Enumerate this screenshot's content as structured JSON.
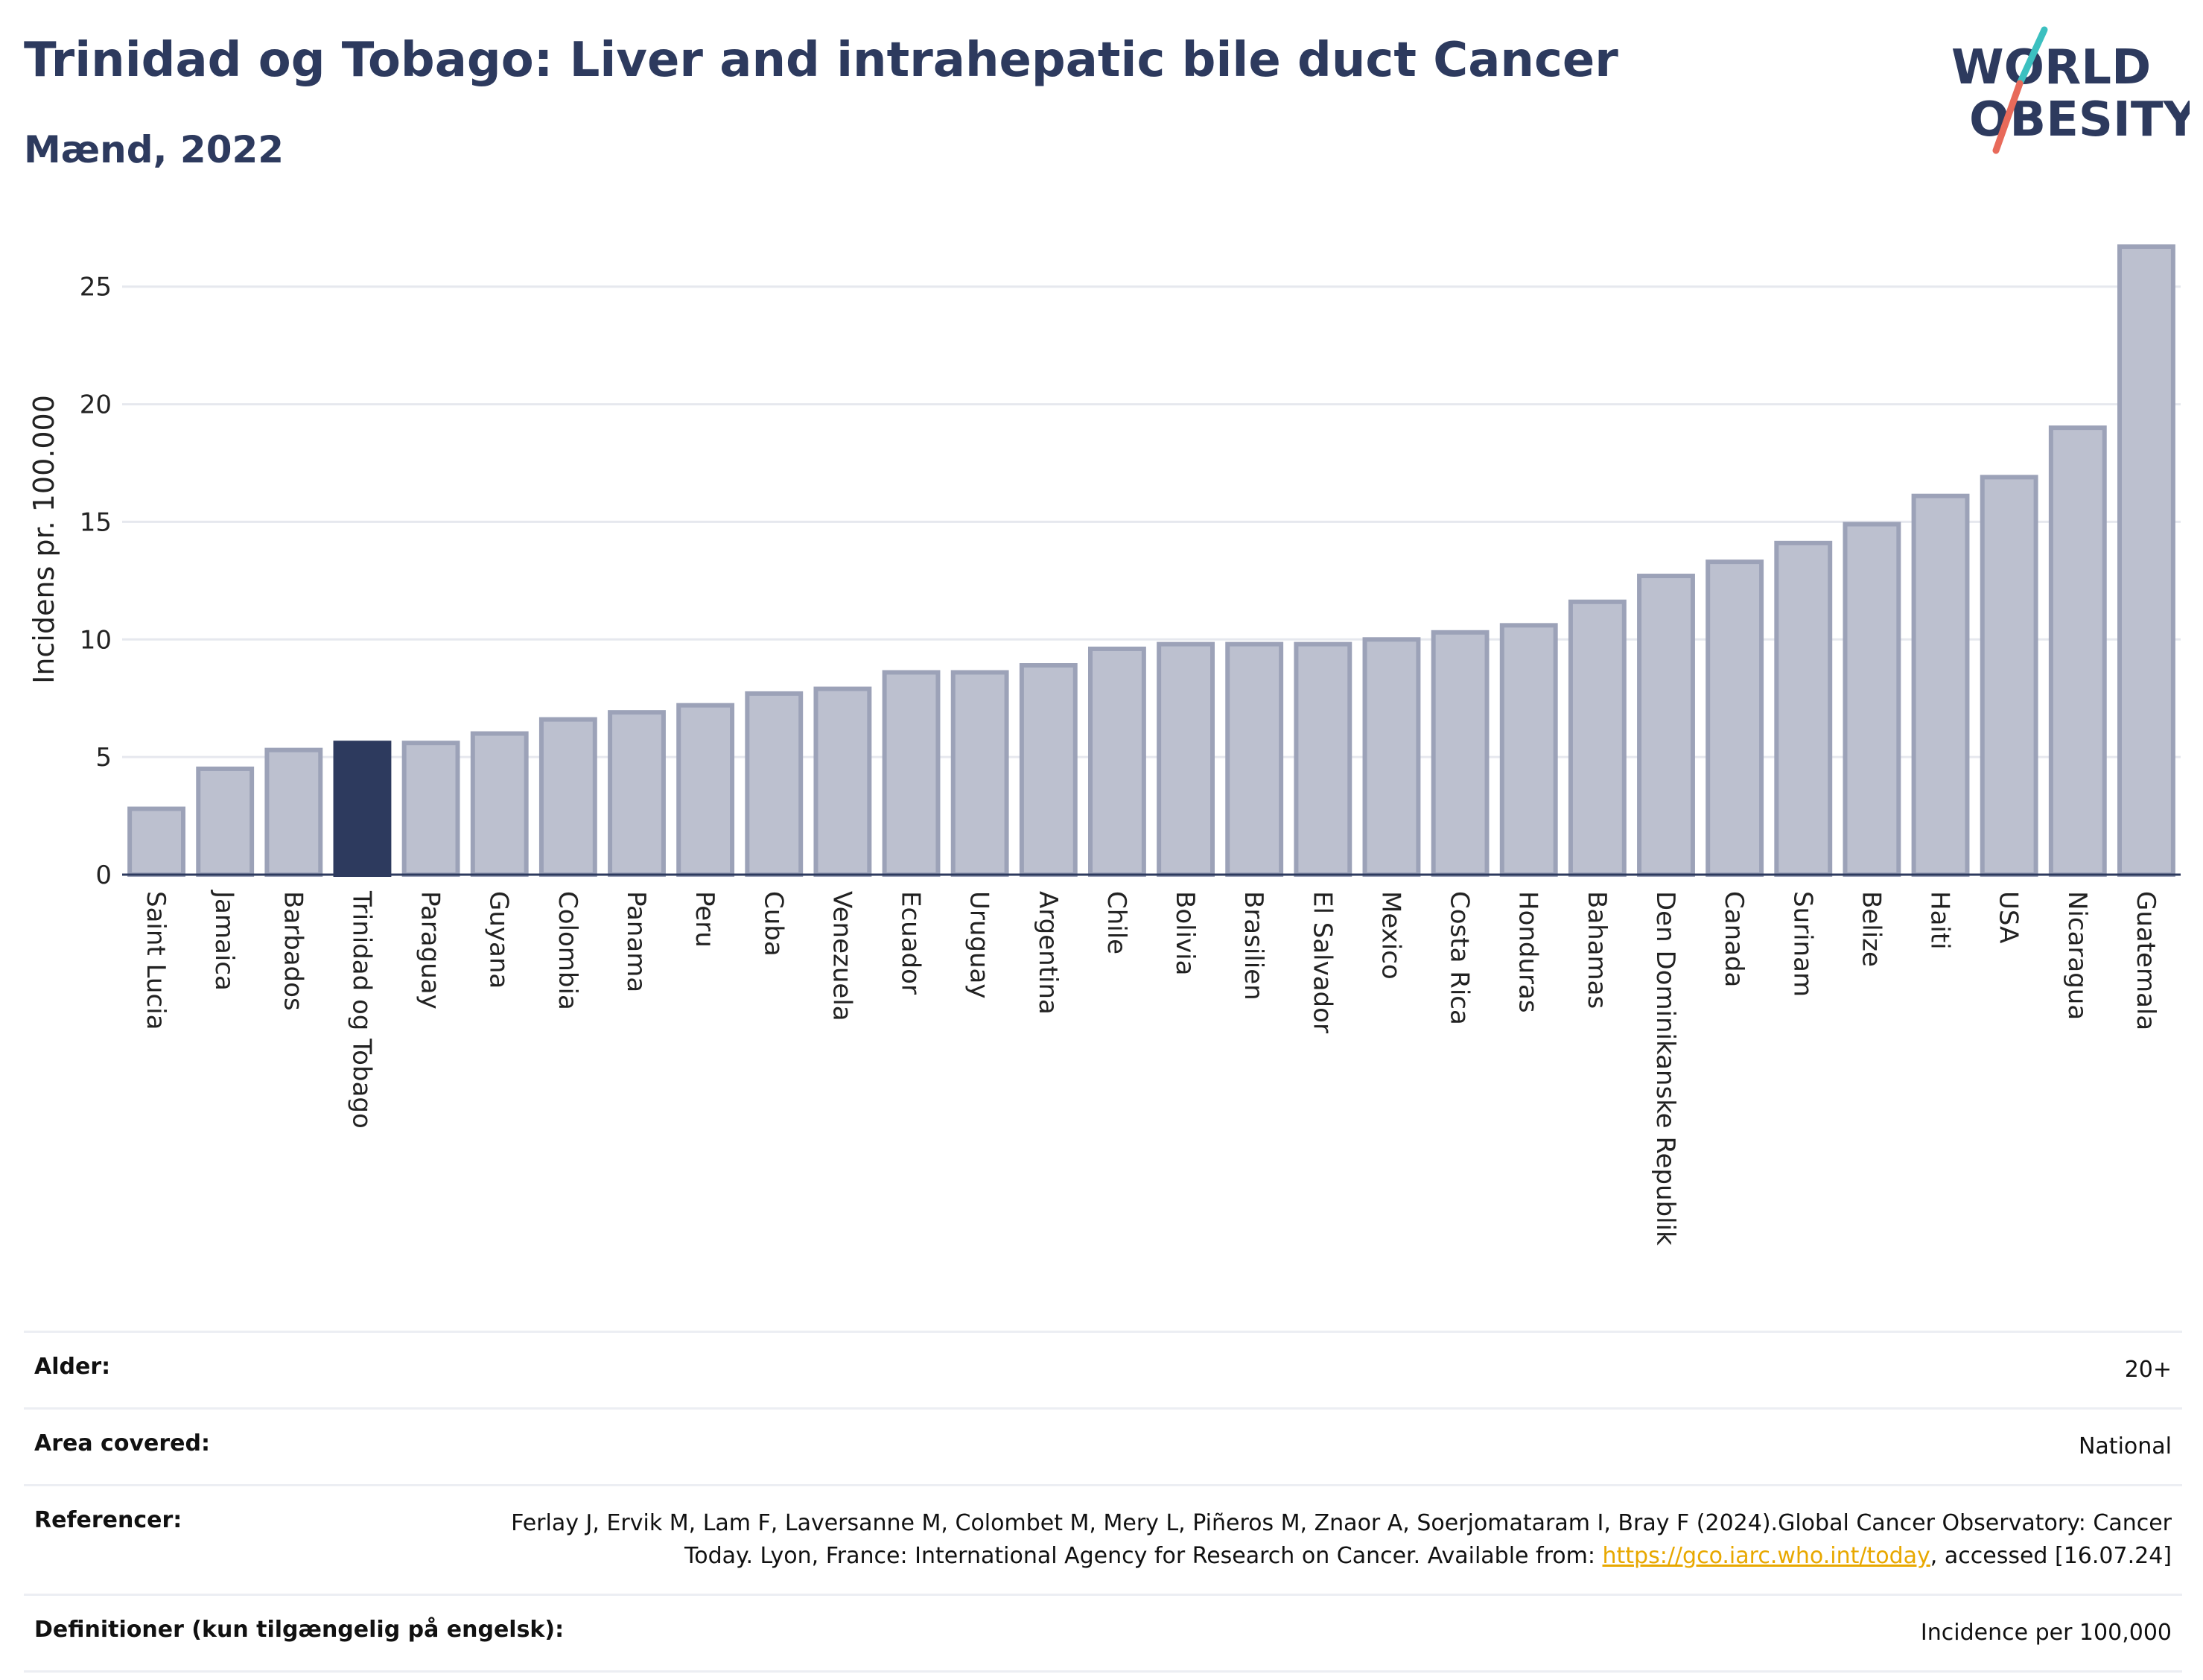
{
  "header": {
    "title": "Trinidad og Tobago: Liver and intrahepatic bile duct Cancer",
    "subtitle": "Mænd, 2022"
  },
  "logo": {
    "line1": "WORLD",
    "line2": "OBESITY",
    "accent_teal": "#3cc0c0",
    "accent_coral": "#e86a5a"
  },
  "colors": {
    "bar": "#bcc0cf",
    "bar_stroke": "#9ca2b8",
    "highlight": "#2d3a5e",
    "grid": "#e6e8ee",
    "axis": "#2d3a5e"
  },
  "chart_data": {
    "type": "bar",
    "ylabel": "Incidens pr. 100.000",
    "ylim": [
      0,
      28
    ],
    "yticks": [
      0,
      5,
      10,
      15,
      20,
      25
    ],
    "grid": true,
    "highlight": "Trinidad og Tobago",
    "categories": [
      "Saint Lucia",
      "Jamaica",
      "Barbados",
      "Trinidad og Tobago",
      "Paraguay",
      "Guyana",
      "Colombia",
      "Panama",
      "Peru",
      "Cuba",
      "Venezuela",
      "Ecuador",
      "Uruguay",
      "Argentina",
      "Chile",
      "Bolivia",
      "Brasilien",
      "El Salvador",
      "Mexico",
      "Costa Rica",
      "Honduras",
      "Bahamas",
      "Den Dominikanske Republik",
      "Canada",
      "Surinam",
      "Belize",
      "Haiti",
      "USA",
      "Nicaragua",
      "Guatemala"
    ],
    "values": [
      2.8,
      4.5,
      5.3,
      5.6,
      5.6,
      6.0,
      6.6,
      6.9,
      7.2,
      7.7,
      7.9,
      8.6,
      8.6,
      8.9,
      9.6,
      9.8,
      9.8,
      9.8,
      10.0,
      10.3,
      10.6,
      11.6,
      12.7,
      13.3,
      14.1,
      14.9,
      16.1,
      16.9,
      19.0,
      26.7
    ]
  },
  "meta": {
    "age_label": "Alder:",
    "age_value": "20+",
    "area_label": "Area covered:",
    "area_value": "National",
    "ref_label": "Referencer:",
    "ref_text_1": "Ferlay J, Ervik M, Lam F, Laversanne M, Colombet M, Mery L, Piñeros M, Znaor A, Soerjomataram I, Bray F (2024).Global Cancer Observatory: Cancer Today. Lyon, France: International Agency for Research on Cancer. Available from: ",
    "ref_link": "https://gco.iarc.who.int/today",
    "ref_text_2": ", accessed [16.07.24]",
    "def_label": "Definitioner (kun tilgængelig på engelsk):",
    "def_value": "Incidence per 100,000"
  }
}
